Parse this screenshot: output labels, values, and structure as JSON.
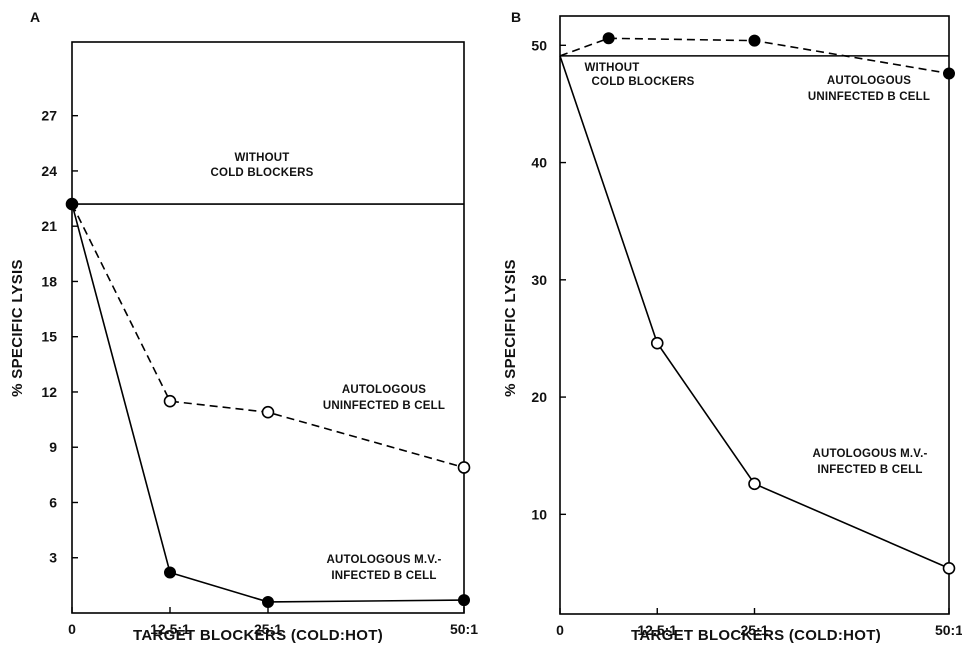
{
  "chart_data": [
    {
      "panel": "A",
      "type": "line",
      "ylabel": "% SPECIFIC LYSIS",
      "xlabel": "TARGET BLOCKERS (COLD:HOT)",
      "x_tick_labels": [
        "0",
        "12.5:1",
        "25:1",
        "50:1"
      ],
      "x_ticks": [
        0,
        12.5,
        25,
        50
      ],
      "y_ticks": [
        3,
        6,
        9,
        12,
        15,
        18,
        21,
        24,
        27
      ],
      "xlim": [
        0,
        50
      ],
      "ylim": [
        0,
        31
      ],
      "reference": {
        "label_lines": [
          "WITHOUT",
          "COLD BLOCKERS"
        ],
        "value": 22.2
      },
      "series": [
        {
          "label_lines": [
            "AUTOLOGOUS",
            "UNINFECTED B CELL"
          ],
          "dash": true,
          "marker": "open",
          "x": [
            0,
            12.5,
            25,
            50
          ],
          "y": [
            22.2,
            11.5,
            10.9,
            7.9
          ]
        },
        {
          "label_lines": [
            "AUTOLOGOUS M.V.-",
            "INFECTED B CELL"
          ],
          "dash": false,
          "marker": "filled",
          "x": [
            0,
            12.5,
            25,
            50
          ],
          "y": [
            22.2,
            2.2,
            0.6,
            0.7
          ]
        }
      ]
    },
    {
      "panel": "B",
      "type": "line",
      "ylabel": "% SPECIFIC LYSIS",
      "xlabel": "TARGET BLOCKERS (COLD:HOT)",
      "x_tick_labels": [
        "0",
        "12.5:1",
        "25:1",
        "50:1"
      ],
      "x_ticks": [
        0,
        12.5,
        25,
        50
      ],
      "y_ticks": [
        10,
        20,
        30,
        40,
        50
      ],
      "xlim": [
        0,
        50
      ],
      "ylim": [
        1.5,
        52.5
      ],
      "reference": {
        "label_lines": [
          "WITHOUT",
          "COLD BLOCKERS"
        ],
        "value": 49.1
      },
      "series": [
        {
          "label_lines": [
            "AUTOLOGOUS",
            "UNINFECTED B CELL"
          ],
          "dash": true,
          "marker": "filled",
          "x": [
            0,
            6.25,
            25,
            50
          ],
          "y": [
            49.1,
            50.6,
            50.4,
            47.6
          ],
          "marker_from": 1
        },
        {
          "label_lines": [
            "AUTOLOGOUS M.V.-",
            "INFECTED B CELL"
          ],
          "dash": false,
          "marker": "open",
          "x": [
            0,
            12.5,
            25,
            50
          ],
          "y": [
            49.1,
            24.6,
            12.6,
            5.4
          ],
          "marker_from": 1
        }
      ]
    }
  ]
}
